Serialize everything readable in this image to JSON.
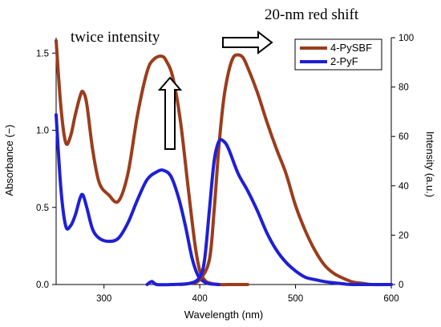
{
  "annotations": {
    "twice_intensity": "twice intensity",
    "red_shift": "20-nm red shift"
  },
  "chart_data": {
    "type": "line",
    "xlabel": "Wavelength (nm)",
    "ylabel_left": "Absorbance (−)",
    "ylabel_right": "Intensity (a.u.)",
    "xlim": [
      250,
      600
    ],
    "ylim_left": [
      0,
      1.6
    ],
    "ylim_right": [
      0,
      100
    ],
    "x_ticks": [
      300,
      400,
      500,
      600
    ],
    "y_left_ticks": [
      0.0,
      0.5,
      1.0,
      1.5
    ],
    "y_left_tick_labels": [
      "0.0",
      "0.5",
      "1.0",
      "1.5"
    ],
    "y_right_ticks": [
      0,
      20,
      40,
      60,
      80,
      100
    ],
    "legend_placement": "top-right",
    "grid": false,
    "colors": {
      "4-PySBF": "#9b3d1c",
      "2-PyF": "#1f1fd6"
    },
    "series": [
      {
        "name": "4-PySBF",
        "role": "absorbance",
        "axis": "left",
        "x": [
          250,
          255,
          260,
          265,
          270,
          275,
          278,
          282,
          288,
          295,
          305,
          315,
          325,
          335,
          345,
          352,
          360,
          365,
          372,
          380,
          388,
          395,
          400,
          405,
          410,
          420,
          430,
          450
        ],
        "y": [
          1.58,
          1.15,
          0.92,
          0.96,
          1.1,
          1.22,
          1.25,
          1.17,
          0.88,
          0.66,
          0.58,
          0.54,
          0.72,
          1.1,
          1.38,
          1.46,
          1.48,
          1.45,
          1.34,
          1.05,
          0.62,
          0.26,
          0.09,
          0.03,
          0.01,
          0,
          0,
          0
        ]
      },
      {
        "name": "2-PyF",
        "role": "absorbance",
        "axis": "left",
        "x": [
          250,
          255,
          260,
          265,
          270,
          275,
          278,
          282,
          288,
          295,
          305,
          315,
          325,
          335,
          345,
          355,
          362,
          370,
          378,
          385,
          392,
          398,
          404,
          410,
          420
        ],
        "y": [
          1.1,
          0.62,
          0.38,
          0.38,
          0.45,
          0.56,
          0.58,
          0.5,
          0.36,
          0.3,
          0.28,
          0.3,
          0.4,
          0.55,
          0.68,
          0.73,
          0.74,
          0.7,
          0.56,
          0.38,
          0.17,
          0.06,
          0.02,
          0.005,
          0
        ]
      },
      {
        "name": "4-PySBF",
        "role": "emission",
        "axis": "right",
        "x": [
          380,
          390,
          400,
          410,
          415,
          420,
          425,
          430,
          435,
          440,
          445,
          450,
          460,
          470,
          480,
          490,
          500,
          510,
          520,
          530,
          540,
          550,
          560,
          570,
          580,
          600
        ],
        "y": [
          0,
          0.5,
          2,
          10,
          30,
          56,
          75,
          86,
          92,
          93,
          92,
          88,
          78,
          66,
          55,
          45,
          32,
          22,
          14,
          8,
          4.5,
          2.5,
          1,
          0.5,
          0,
          0
        ]
      },
      {
        "name": "2-PyF",
        "role": "emission",
        "axis": "right",
        "x": [
          345,
          350,
          355,
          370,
          390,
          400,
          405,
          410,
          415,
          420,
          425,
          430,
          440,
          450,
          460,
          470,
          480,
          490,
          500,
          510,
          520,
          530,
          540,
          550,
          560,
          600
        ],
        "y": [
          0,
          1.2,
          0,
          0,
          0.5,
          3,
          10,
          30,
          50,
          58,
          58,
          55,
          45,
          38,
          30,
          21,
          14,
          9,
          5.5,
          3,
          2,
          1.2,
          0.7,
          0.3,
          0,
          0
        ]
      }
    ]
  }
}
